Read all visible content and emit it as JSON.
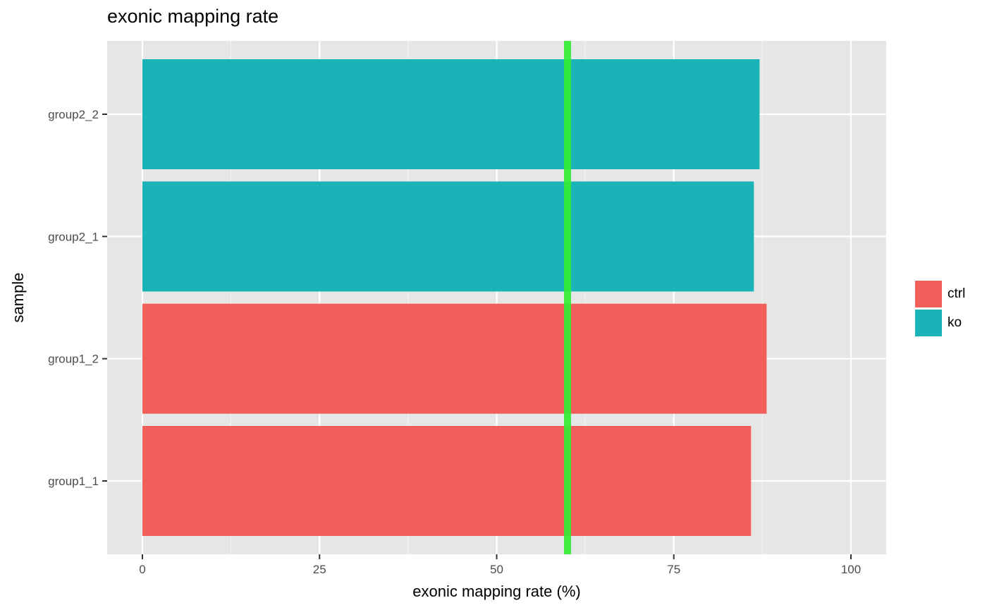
{
  "chart_data": {
    "type": "bar",
    "orientation": "horizontal",
    "title": "exonic mapping rate",
    "xlabel": "exonic mapping rate (%)",
    "ylabel": "sample",
    "xlim": [
      0,
      100
    ],
    "xticks": [
      "0",
      "25",
      "50",
      "75",
      "100"
    ],
    "categories": [
      "group1_1",
      "group1_2",
      "group2_1",
      "group2_2"
    ],
    "values": [
      85.9,
      88.1,
      86.3,
      87.1
    ],
    "groups": [
      "ctrl",
      "ctrl",
      "ko",
      "ko"
    ],
    "legend": [
      {
        "label": "ctrl",
        "color": "#F15F5A"
      },
      {
        "label": "ko",
        "color": "#1AB4B8"
      }
    ],
    "reference_line": {
      "x": 60,
      "color": "#33EE33"
    },
    "grid": true,
    "legend_position": "right",
    "panel_color": "#E6E6E6"
  }
}
